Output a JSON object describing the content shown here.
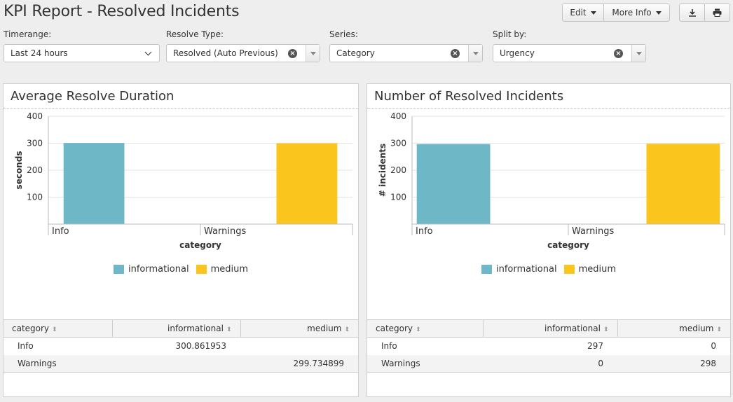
{
  "header": {
    "title": "KPI Report - Resolved Incidents",
    "edit_label": "Edit",
    "more_info_label": "More Info"
  },
  "filters": {
    "timerange": {
      "label": "Timerange:",
      "value": "Last 24 hours"
    },
    "resolve_type": {
      "label": "Resolve Type:",
      "value": "Resolved (Auto Previous)"
    },
    "series": {
      "label": "Series:",
      "value": "Category"
    },
    "split_by": {
      "label": "Split by:",
      "value": "Urgency"
    }
  },
  "colors": {
    "informational": "#6db7c6",
    "medium": "#fac61d"
  },
  "panels": [
    {
      "title": "Average Resolve Duration",
      "table": {
        "headers": [
          "category",
          "informational",
          "medium"
        ],
        "rows": [
          [
            "Info",
            "300.861953",
            ""
          ],
          [
            "Warnings",
            "",
            "299.734899"
          ]
        ]
      }
    },
    {
      "title": "Number of Resolved Incidents",
      "table": {
        "headers": [
          "category",
          "informational",
          "medium"
        ],
        "rows": [
          [
            "Info",
            "297",
            "0"
          ],
          [
            "Warnings",
            "0",
            "298"
          ]
        ]
      }
    }
  ],
  "chart_data": [
    {
      "type": "bar",
      "categories": [
        "Info",
        "Warnings"
      ],
      "series": [
        {
          "name": "informational",
          "values": [
            300.861953,
            0
          ]
        },
        {
          "name": "medium",
          "values": [
            0,
            299.734899
          ]
        }
      ],
      "xlabel": "category",
      "ylabel": "seconds",
      "yticks": [
        100,
        200,
        300,
        400
      ],
      "ylim": [
        0,
        400
      ],
      "legend": "bottom"
    },
    {
      "type": "bar",
      "categories": [
        "Info",
        "Warnings"
      ],
      "series": [
        {
          "name": "informational",
          "values": [
            297,
            0
          ]
        },
        {
          "name": "medium",
          "values": [
            0,
            298
          ]
        }
      ],
      "xlabel": "category",
      "ylabel": "# incidents",
      "yticks": [
        100,
        200,
        300,
        400
      ],
      "ylim": [
        0,
        400
      ],
      "legend": "bottom"
    }
  ]
}
